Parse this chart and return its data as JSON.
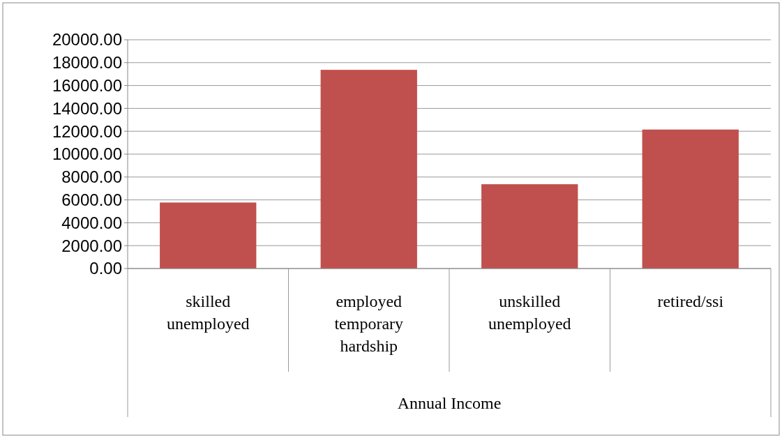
{
  "chart_data": {
    "type": "bar",
    "xlabel": "Annual Income",
    "categories": [
      "skilled unemployed",
      "employed temporary hardship",
      "unskilled unemployed",
      "retired/ssi"
    ],
    "values": [
      5770,
      17370,
      7370,
      12150
    ],
    "color": "#c0504d",
    "ylim": [
      0,
      20000
    ],
    "yticks": [
      {
        "value": 0,
        "label": "0.00"
      },
      {
        "value": 2000,
        "label": "2000.00"
      },
      {
        "value": 4000,
        "label": "4000.00"
      },
      {
        "value": 6000,
        "label": "6000.00"
      },
      {
        "value": 8000,
        "label": "8000.00"
      },
      {
        "value": 10000,
        "label": "10000.00"
      },
      {
        "value": 12000,
        "label": "12000.00"
      },
      {
        "value": 14000,
        "label": "14000.00"
      },
      {
        "value": 16000,
        "label": "16000.00"
      },
      {
        "value": 18000,
        "label": "18000.00"
      },
      {
        "value": 20000,
        "label": "20000.00"
      }
    ],
    "grid": "y"
  }
}
